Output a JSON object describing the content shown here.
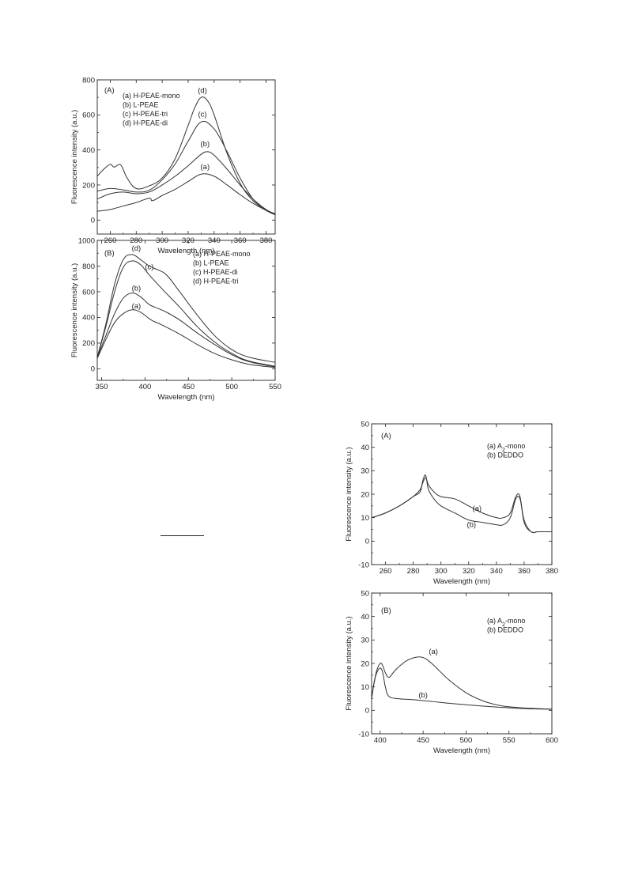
{
  "chart_data": [
    {
      "id": "fig1A",
      "type": "line",
      "panel_label": "(A)",
      "xlabel": "Wavelength (nm)",
      "ylabel": "Fluorescence intensity (a.u.)",
      "xlim": [
        250,
        387
      ],
      "ylim": [
        -80,
        800
      ],
      "xticks": [
        260,
        280,
        300,
        320,
        340,
        360,
        380
      ],
      "yticks": [
        0,
        200,
        400,
        600,
        800
      ],
      "legend": [
        "(a) H-PEAE-mono",
        "(b) L-PEAE",
        "(c) H-PEAE-tri",
        "(d) H-PEAE-di"
      ],
      "legend_position": "top-left",
      "series": [
        {
          "name": "(a)",
          "x": [
            250,
            260,
            270,
            280,
            290,
            292,
            295,
            300,
            310,
            320,
            330,
            340,
            350,
            360,
            370,
            380,
            387
          ],
          "y": [
            50,
            60,
            80,
            100,
            125,
            110,
            118,
            140,
            175,
            220,
            262,
            250,
            200,
            145,
            95,
            55,
            30
          ],
          "label_at": [
            333,
            290
          ]
        },
        {
          "name": "(b)",
          "x": [
            250,
            260,
            270,
            280,
            290,
            300,
            310,
            320,
            330,
            335,
            340,
            350,
            360,
            370,
            380,
            387
          ],
          "y": [
            120,
            150,
            160,
            150,
            160,
            200,
            250,
            310,
            375,
            390,
            370,
            290,
            200,
            120,
            60,
            35
          ],
          "label_at": [
            333,
            420
          ]
        },
        {
          "name": "(c)",
          "x": [
            250,
            260,
            270,
            280,
            290,
            300,
            310,
            320,
            330,
            340,
            350,
            360,
            370,
            380,
            387
          ],
          "y": [
            165,
            180,
            172,
            160,
            170,
            230,
            320,
            450,
            560,
            520,
            390,
            240,
            120,
            60,
            35
          ],
          "label_at": [
            331,
            590
          ]
        },
        {
          "name": "(d)",
          "x": [
            250,
            255,
            260,
            263,
            268,
            273,
            280,
            290,
            300,
            310,
            320,
            325,
            330,
            335,
            340,
            350,
            360,
            370,
            380,
            387
          ],
          "y": [
            250,
            290,
            318,
            302,
            315,
            240,
            180,
            195,
            240,
            350,
            540,
            640,
            700,
            680,
            600,
            380,
            210,
            110,
            55,
            30
          ],
          "label_at": [
            331,
            725
          ]
        }
      ]
    },
    {
      "id": "fig1B",
      "type": "line",
      "panel_label": "(B)",
      "xlabel": "Wavelength (nm)",
      "ylabel": "Fluorescence intensity (a.u.)",
      "xlim": [
        345,
        550
      ],
      "ylim": [
        -90,
        1000
      ],
      "xticks": [
        350,
        400,
        450,
        500,
        550
      ],
      "yticks": [
        0,
        200,
        400,
        600,
        800,
        1000
      ],
      "legend": [
        "(a) H-PEAE-mono",
        "(b) L-PEAE",
        "(c) H-PEAE-di",
        "(d) H-PEAE-tri"
      ],
      "legend_position": "top-right",
      "series": [
        {
          "name": "(a)",
          "x": [
            345,
            355,
            365,
            375,
            385,
            395,
            405,
            410,
            420,
            440,
            460,
            480,
            500,
            520,
            550
          ],
          "y": [
            80,
            230,
            360,
            430,
            460,
            440,
            390,
            370,
            340,
            270,
            190,
            120,
            70,
            35,
            10
          ],
          "label_at": [
            390,
            470
          ]
        },
        {
          "name": "(b)",
          "x": [
            345,
            355,
            365,
            375,
            385,
            395,
            405,
            415,
            425,
            440,
            460,
            480,
            500,
            520,
            550
          ],
          "y": [
            90,
            260,
            430,
            550,
            590,
            560,
            500,
            470,
            440,
            380,
            280,
            190,
            110,
            55,
            15
          ],
          "label_at": [
            390,
            610
          ]
        },
        {
          "name": "(c)",
          "x": [
            345,
            355,
            365,
            375,
            385,
            395,
            405,
            420,
            440,
            460,
            480,
            500,
            520,
            550
          ],
          "y": [
            90,
            330,
            600,
            790,
            840,
            810,
            730,
            620,
            480,
            330,
            210,
            120,
            60,
            20
          ],
          "label_at": [
            405,
            775
          ]
        },
        {
          "name": "(d)",
          "x": [
            345,
            355,
            365,
            375,
            385,
            395,
            405,
            415,
            425,
            440,
            460,
            480,
            500,
            520,
            550
          ],
          "y": [
            90,
            350,
            660,
            850,
            890,
            850,
            800,
            770,
            730,
            600,
            420,
            260,
            150,
            90,
            50
          ],
          "label_at": [
            390,
            920
          ]
        }
      ]
    },
    {
      "id": "fig2A",
      "type": "line",
      "panel_label": "(A)",
      "xlabel": "Wavelength (nm)",
      "ylabel": "Fluorescence intensity (a.u.)",
      "xlim": [
        250,
        380
      ],
      "ylim": [
        -10,
        50
      ],
      "xticks": [
        260,
        280,
        300,
        320,
        340,
        360,
        380
      ],
      "yticks": [
        -10,
        0,
        10,
        20,
        30,
        40,
        50
      ],
      "legend": [
        "(a) A",
        "(b) DEDDO"
      ],
      "legend_sub": [
        "2",
        ""
      ],
      "legend_suffix": [
        "-mono",
        ""
      ],
      "legend_position": "top-right",
      "series": [
        {
          "name": "(a)",
          "x": [
            250,
            260,
            270,
            280,
            285,
            287,
            289,
            291,
            295,
            300,
            310,
            320,
            330,
            340,
            345,
            350,
            354,
            357,
            360,
            365,
            370,
            380
          ],
          "y": [
            10,
            12,
            15,
            19,
            22,
            25,
            27,
            24,
            21,
            19,
            18,
            15,
            12,
            10,
            10,
            12,
            19,
            19,
            8,
            4,
            4,
            4
          ],
          "label_at": [
            326,
            13
          ]
        },
        {
          "name": "(b)",
          "x": [
            250,
            260,
            270,
            280,
            285,
            287,
            289,
            291,
            295,
            300,
            310,
            320,
            330,
            340,
            345,
            350,
            354,
            357,
            360,
            365,
            370,
            380
          ],
          "y": [
            10,
            12,
            15,
            19,
            21,
            26,
            28,
            22,
            18,
            15,
            12,
            9,
            8,
            7,
            7,
            10,
            18,
            18,
            9,
            4,
            4,
            4
          ],
          "label_at": [
            322,
            6
          ]
        }
      ]
    },
    {
      "id": "fig2B",
      "type": "line",
      "panel_label": "(B)",
      "xlabel": "Wavelength (nm)",
      "ylabel": "Fluorescence intensity (a.u.)",
      "xlim": [
        390,
        600
      ],
      "ylim": [
        -10,
        50
      ],
      "xticks": [
        400,
        450,
        500,
        550,
        600
      ],
      "yticks": [
        -10,
        0,
        10,
        20,
        30,
        40,
        50
      ],
      "legend": [
        "(a) A",
        "(b) DEDDO"
      ],
      "legend_sub": [
        "2",
        ""
      ],
      "legend_suffix": [
        "-mono",
        ""
      ],
      "legend_position": "top-right",
      "series": [
        {
          "name": "(a)",
          "x": [
            390,
            393,
            396,
            400,
            403,
            406,
            410,
            415,
            420,
            430,
            440,
            450,
            460,
            480,
            500,
            520,
            540,
            560,
            580,
            600
          ],
          "y": [
            5,
            12,
            17,
            20,
            19,
            16,
            14,
            16,
            18,
            21,
            22.5,
            22.5,
            20,
            13,
            7.5,
            4,
            2,
            1.2,
            0.8,
            0.5
          ],
          "label_at": [
            462,
            24
          ]
        },
        {
          "name": "(b)",
          "x": [
            390,
            393,
            396,
            400,
            403,
            406,
            410,
            420,
            440,
            460,
            480,
            500,
            520,
            540,
            560,
            580,
            600
          ],
          "y": [
            5,
            12,
            16,
            18,
            16,
            10,
            6,
            5,
            4.5,
            3.8,
            3,
            2.4,
            1.8,
            1.3,
            0.9,
            0.6,
            0.5
          ],
          "label_at": [
            450,
            5.5
          ]
        }
      ]
    }
  ]
}
